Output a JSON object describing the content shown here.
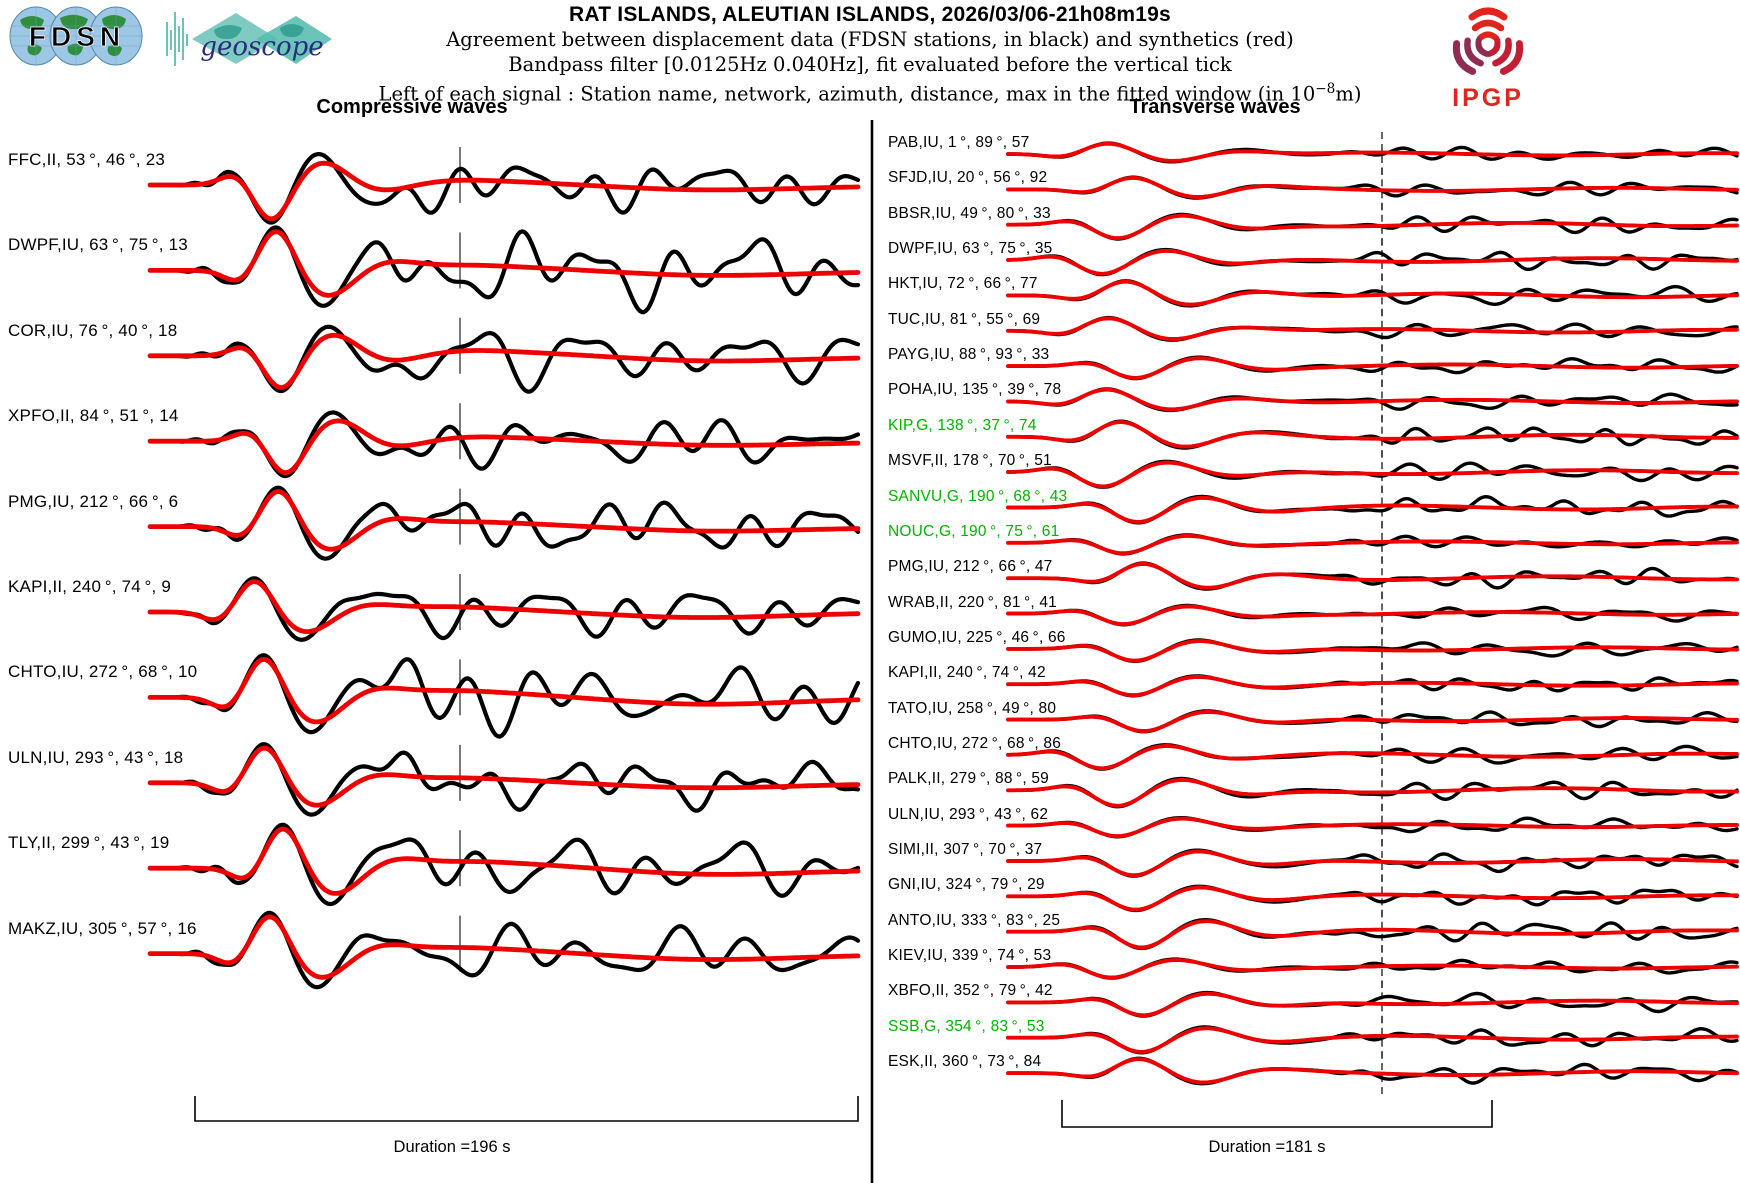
{
  "header": {
    "title": "RAT ISLANDS, ALEUTIAN ISLANDS, 2026/03/06-21h08m19s",
    "subtitle_agreement": "Agreement between displacement data (FDSN stations, in black) and synthetics (red)",
    "subtitle_bandpass": "Bandpass filter [0.0125Hz 0.040Hz], fit evaluated before the vertical tick",
    "legend_prefix": "Left of each signal : Station name, network, azimuth, distance, max in the fitted window (in 10",
    "legend_exponent": "−8",
    "legend_suffix": "m)"
  },
  "logos": {
    "fdsn_label": "FDSN",
    "geoscope_label": "geoscope",
    "ipgp_label": "IPGP"
  },
  "colors": {
    "data_trace": "#000000",
    "synthetic_trace": "#ee0000",
    "highlight_station": "#00b400",
    "divider": "#000000",
    "ipgp_red": "#e0251d",
    "ipgp_maroon": "#8e2c52",
    "geoscope_teal": "#5fbfb2",
    "fdsn_blue": "#9ec7e6",
    "fdsn_green": "#2f8f3e"
  },
  "chart_data": {
    "type": "line",
    "title": "RAT ISLANDS, ALEUTIAN ISLANDS, 2026/03/06-21h08m19s",
    "bandpass_filter_hz": [
      0.0125,
      0.04
    ],
    "amplitude_units": "1e-8 m",
    "series_legend": {
      "black": "displacement data (FDSN stations)",
      "red": "synthetics"
    },
    "station_label_columns": [
      "station",
      "network",
      "azimuth_deg",
      "distance_deg",
      "max_in_fitted_window_1e-8m"
    ],
    "panels": [
      {
        "heading": "Compressive waves",
        "duration_s": 196,
        "duration_label": "Duration =196 s",
        "stations": [
          {
            "station": "FFC",
            "network": "II",
            "azimuth_deg": 53,
            "distance_deg": 46,
            "max_fitted": 23,
            "green": false
          },
          {
            "station": "DWPF",
            "network": "IU",
            "azimuth_deg": 63,
            "distance_deg": 75,
            "max_fitted": 13,
            "green": false
          },
          {
            "station": "COR",
            "network": "IU",
            "azimuth_deg": 76,
            "distance_deg": 40,
            "max_fitted": 18,
            "green": false
          },
          {
            "station": "XPFO",
            "network": "II",
            "azimuth_deg": 84,
            "distance_deg": 51,
            "max_fitted": 14,
            "green": false
          },
          {
            "station": "PMG",
            "network": "IU",
            "azimuth_deg": 212,
            "distance_deg": 66,
            "max_fitted": 6,
            "green": false
          },
          {
            "station": "KAPI",
            "network": "II",
            "azimuth_deg": 240,
            "distance_deg": 74,
            "max_fitted": 9,
            "green": false
          },
          {
            "station": "CHTO",
            "network": "IU",
            "azimuth_deg": 272,
            "distance_deg": 68,
            "max_fitted": 10,
            "green": false
          },
          {
            "station": "ULN",
            "network": "IU",
            "azimuth_deg": 293,
            "distance_deg": 43,
            "max_fitted": 18,
            "green": false
          },
          {
            "station": "TLY",
            "network": "II",
            "azimuth_deg": 299,
            "distance_deg": 43,
            "max_fitted": 19,
            "green": false
          },
          {
            "station": "MAKZ",
            "network": "IU",
            "azimuth_deg": 305,
            "distance_deg": 57,
            "max_fitted": 16,
            "green": false
          }
        ]
      },
      {
        "heading": "Transverse waves",
        "duration_s": 181,
        "duration_label": "Duration =181 s",
        "stations": [
          {
            "station": "PAB",
            "network": "IU",
            "azimuth_deg": 1,
            "distance_deg": 89,
            "max_fitted": 57,
            "green": false
          },
          {
            "station": "SFJD",
            "network": "IU",
            "azimuth_deg": 20,
            "distance_deg": 56,
            "max_fitted": 92,
            "green": false
          },
          {
            "station": "BBSR",
            "network": "IU",
            "azimuth_deg": 49,
            "distance_deg": 80,
            "max_fitted": 33,
            "green": false
          },
          {
            "station": "DWPF",
            "network": "IU",
            "azimuth_deg": 63,
            "distance_deg": 75,
            "max_fitted": 35,
            "green": false
          },
          {
            "station": "HKT",
            "network": "IU",
            "azimuth_deg": 72,
            "distance_deg": 66,
            "max_fitted": 77,
            "green": false
          },
          {
            "station": "TUC",
            "network": "IU",
            "azimuth_deg": 81,
            "distance_deg": 55,
            "max_fitted": 69,
            "green": false
          },
          {
            "station": "PAYG",
            "network": "IU",
            "azimuth_deg": 88,
            "distance_deg": 93,
            "max_fitted": 33,
            "green": false
          },
          {
            "station": "POHA",
            "network": "IU",
            "azimuth_deg": 135,
            "distance_deg": 39,
            "max_fitted": 78,
            "green": false
          },
          {
            "station": "KIP",
            "network": "G",
            "azimuth_deg": 138,
            "distance_deg": 37,
            "max_fitted": 74,
            "green": true
          },
          {
            "station": "MSVF",
            "network": "II",
            "azimuth_deg": 178,
            "distance_deg": 70,
            "max_fitted": 51,
            "green": false
          },
          {
            "station": "SANVU",
            "network": "G",
            "azimuth_deg": 190,
            "distance_deg": 68,
            "max_fitted": 43,
            "green": true
          },
          {
            "station": "NOUC",
            "network": "G",
            "azimuth_deg": 190,
            "distance_deg": 75,
            "max_fitted": 61,
            "green": true
          },
          {
            "station": "PMG",
            "network": "IU",
            "azimuth_deg": 212,
            "distance_deg": 66,
            "max_fitted": 47,
            "green": false
          },
          {
            "station": "WRAB",
            "network": "II",
            "azimuth_deg": 220,
            "distance_deg": 81,
            "max_fitted": 41,
            "green": false
          },
          {
            "station": "GUMO",
            "network": "IU",
            "azimuth_deg": 225,
            "distance_deg": 46,
            "max_fitted": 66,
            "green": false
          },
          {
            "station": "KAPI",
            "network": "II",
            "azimuth_deg": 240,
            "distance_deg": 74,
            "max_fitted": 42,
            "green": false
          },
          {
            "station": "TATO",
            "network": "IU",
            "azimuth_deg": 258,
            "distance_deg": 49,
            "max_fitted": 80,
            "green": false
          },
          {
            "station": "CHTO",
            "network": "IU",
            "azimuth_deg": 272,
            "distance_deg": 68,
            "max_fitted": 86,
            "green": false
          },
          {
            "station": "PALK",
            "network": "II",
            "azimuth_deg": 279,
            "distance_deg": 88,
            "max_fitted": 59,
            "green": false
          },
          {
            "station": "ULN",
            "network": "IU",
            "azimuth_deg": 293,
            "distance_deg": 43,
            "max_fitted": 62,
            "green": false
          },
          {
            "station": "SIMI",
            "network": "II",
            "azimuth_deg": 307,
            "distance_deg": 70,
            "max_fitted": 37,
            "green": false
          },
          {
            "station": "GNI",
            "network": "IU",
            "azimuth_deg": 324,
            "distance_deg": 79,
            "max_fitted": 29,
            "green": false
          },
          {
            "station": "ANTO",
            "network": "IU",
            "azimuth_deg": 333,
            "distance_deg": 83,
            "max_fitted": 25,
            "green": false
          },
          {
            "station": "KIEV",
            "network": "IU",
            "azimuth_deg": 339,
            "distance_deg": 74,
            "max_fitted": 53,
            "green": false
          },
          {
            "station": "XBFO",
            "network": "II",
            "azimuth_deg": 352,
            "distance_deg": 79,
            "max_fitted": 42,
            "green": false
          },
          {
            "station": "SSB",
            "network": "G",
            "azimuth_deg": 354,
            "distance_deg": 83,
            "max_fitted": 53,
            "green": true
          },
          {
            "station": "ESK",
            "network": "II",
            "azimuth_deg": 360,
            "distance_deg": 73,
            "max_fitted": 84,
            "green": false
          }
        ]
      }
    ]
  }
}
